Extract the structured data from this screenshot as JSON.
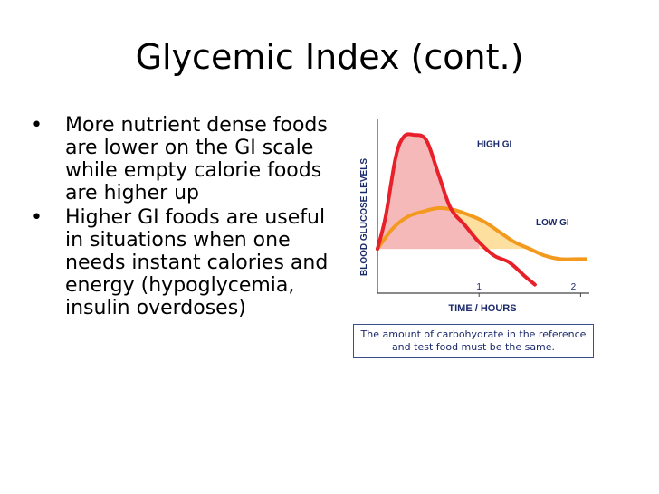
{
  "slide": {
    "title": "Glycemic Index (cont.)",
    "bullets": [
      "More nutrient dense foods are lower on the GI scale while empty calorie foods are higher up",
      "Higher GI foods are useful in situations when one needs instant calories and energy (hypoglycemia, insulin overdoses)"
    ],
    "bullet_marker": "•"
  },
  "chart_data": {
    "type": "line",
    "xlabel": "TIME / HOURS",
    "ylabel": "BLOOD GLUCOSE LEVELS",
    "x_ticks": [
      "1",
      "2"
    ],
    "xlim": [
      0,
      2.05
    ],
    "ylim": [
      0,
      1
    ],
    "baseline": 0.26,
    "series": [
      {
        "name": "HIGH GI",
        "color": "#e8202a",
        "fill": "#f6b9b9",
        "x": [
          0,
          0.08,
          0.18,
          0.26,
          0.36,
          0.48,
          0.6,
          0.72,
          0.86,
          1.0,
          1.15,
          1.3,
          1.45,
          1.55
        ],
        "y": [
          0.26,
          0.45,
          0.8,
          0.92,
          0.93,
          0.9,
          0.7,
          0.5,
          0.4,
          0.3,
          0.22,
          0.18,
          0.1,
          0.05
        ]
      },
      {
        "name": "LOW GI",
        "color": "#f39a1e",
        "fill": "#fde0a0",
        "x": [
          0,
          0.15,
          0.3,
          0.45,
          0.6,
          0.75,
          0.9,
          1.05,
          1.2,
          1.35,
          1.5,
          1.65,
          1.8,
          1.95,
          2.05
        ],
        "y": [
          0.26,
          0.38,
          0.45,
          0.48,
          0.5,
          0.49,
          0.46,
          0.42,
          0.36,
          0.3,
          0.26,
          0.22,
          0.2,
          0.2,
          0.2
        ]
      }
    ],
    "caption": "The amount of carbohydrate in the reference and test food must be the same."
  }
}
